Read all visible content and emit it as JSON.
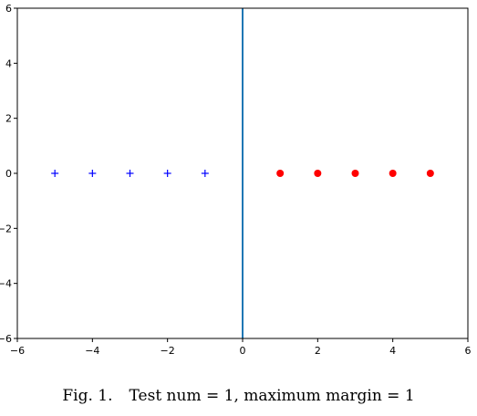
{
  "chart_data": {
    "type": "scatter",
    "title": "",
    "xlabel": "",
    "ylabel": "",
    "xlim": [
      -6,
      6
    ],
    "ylim": [
      -6,
      6
    ],
    "xticks": [
      -6,
      -4,
      -2,
      0,
      2,
      4,
      6
    ],
    "yticks": [
      -6,
      -4,
      -2,
      0,
      2,
      4,
      6
    ],
    "xtick_labels": [
      "−6",
      "−4",
      "−2",
      "0",
      "2",
      "4",
      "6"
    ],
    "ytick_labels": [
      "−6",
      "−4",
      "−2",
      "0",
      "2",
      "4",
      "6"
    ],
    "grid": false,
    "series": [
      {
        "marker": "plus",
        "color": "#0000ff",
        "x": [
          -5,
          -4,
          -3,
          -2,
          -1
        ],
        "y": [
          0,
          0,
          0,
          0,
          0
        ]
      },
      {
        "marker": "circle",
        "color": "#ff0000",
        "x": [
          1,
          2,
          3,
          4,
          5
        ],
        "y": [
          0,
          0,
          0,
          0,
          0
        ]
      }
    ],
    "lines": [
      {
        "orientation": "vertical",
        "x": 0,
        "color": "#1f77b4"
      }
    ]
  },
  "caption": {
    "figure_number": "Fig. 1.",
    "text": "Test num = 1, maximum margin = 1"
  }
}
